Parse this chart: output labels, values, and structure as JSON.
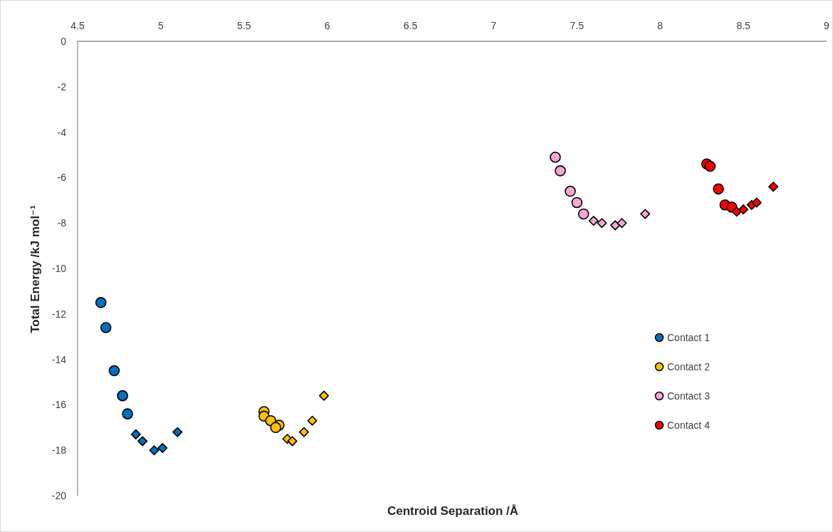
{
  "chart_data": {
    "type": "scatter",
    "xlabel": "Centroid Separation /Å",
    "ylabel": "Total Energy /kJ mol⁻¹",
    "xlim": [
      4.5,
      9
    ],
    "xticks": [
      4.5,
      5,
      5.5,
      6,
      6.5,
      7,
      7.5,
      8,
      8.5,
      9
    ],
    "ylim": [
      -20,
      0
    ],
    "yticks": [
      0,
      -2,
      -4,
      -6,
      -8,
      -10,
      -12,
      -14,
      -16,
      -18,
      -20
    ],
    "legend": "right",
    "series": [
      {
        "name": "Contact 1",
        "color": "#0070c0",
        "marker": "circle",
        "x": [
          4.64,
          4.67,
          4.72,
          4.77,
          4.8
        ],
        "values": [
          -11.5,
          -12.6,
          -14.5,
          -15.6,
          -16.4
        ]
      },
      {
        "color": "#0070c0",
        "marker": "diamond",
        "x": [
          4.85,
          4.89,
          4.96,
          5.01,
          5.1
        ],
        "values": [
          -17.3,
          -17.6,
          -18.0,
          -17.9,
          -17.2
        ]
      },
      {
        "name": "Contact 2",
        "color": "#ffc000",
        "marker": "circle",
        "x": [
          5.62,
          5.62,
          5.66,
          5.71,
          5.69
        ],
        "values": [
          -16.3,
          -16.5,
          -16.7,
          -16.9,
          -17.0
        ]
      },
      {
        "color": "#ffc000",
        "marker": "diamond",
        "x": [
          5.76,
          5.79,
          5.86,
          5.91,
          5.98
        ],
        "values": [
          -17.5,
          -17.6,
          -17.2,
          -16.7,
          -15.6
        ]
      },
      {
        "name": "Contact 3",
        "color": "#f5a6d6",
        "marker": "circle",
        "x": [
          7.37,
          7.4,
          7.46,
          7.5,
          7.54
        ],
        "values": [
          -5.1,
          -5.7,
          -6.6,
          -7.1,
          -7.6
        ]
      },
      {
        "color": "#f5a6d6",
        "marker": "diamond",
        "x": [
          7.6,
          7.65,
          7.73,
          7.77,
          7.91
        ],
        "values": [
          -7.9,
          -8.0,
          -8.1,
          -8.0,
          -7.6
        ]
      },
      {
        "name": "Contact 4",
        "color": "#ff0000",
        "marker": "circle",
        "x": [
          8.28,
          8.3,
          8.35,
          8.39,
          8.43
        ],
        "values": [
          -5.4,
          -5.5,
          -6.5,
          -7.2,
          -7.3
        ]
      },
      {
        "color": "#ff0000",
        "marker": "diamond",
        "x": [
          8.46,
          8.5,
          8.55,
          8.58,
          8.68
        ],
        "values": [
          -7.5,
          -7.4,
          -7.2,
          -7.1,
          -6.4
        ]
      }
    ]
  }
}
